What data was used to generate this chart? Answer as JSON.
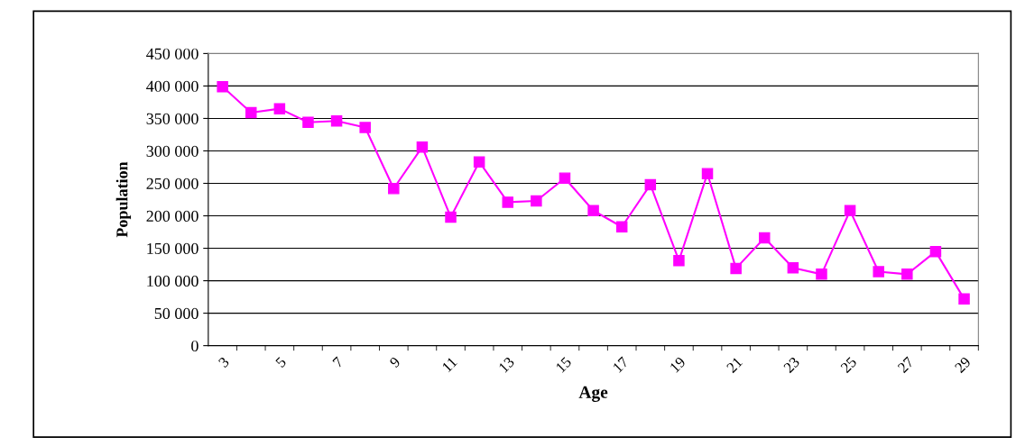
{
  "chart_data": {
    "type": "line",
    "xlabel": "Age",
    "ylabel": "Population",
    "categories": [
      "3",
      null,
      "5",
      null,
      "7",
      null,
      "9",
      null,
      "11",
      null,
      "13",
      null,
      "15",
      null,
      "17",
      null,
      "19",
      null,
      "21",
      null,
      "23",
      null,
      "25",
      null,
      "27",
      null,
      "29"
    ],
    "series": [
      {
        "color": "#ff00ff",
        "values": [
          399000,
          359000,
          365000,
          344000,
          346000,
          336000,
          242000,
          306000,
          198000,
          283000,
          221000,
          223000,
          258000,
          208000,
          183000,
          248000,
          131000,
          265000,
          119000,
          166000,
          120000,
          110000,
          208000,
          114000,
          110000,
          145000,
          72000
        ]
      }
    ],
    "ylim": [
      0,
      450000
    ],
    "yticks": [
      {
        "value": 0,
        "label": "0"
      },
      {
        "value": 50000,
        "label": "50 000"
      },
      {
        "value": 100000,
        "label": "100 000"
      },
      {
        "value": 150000,
        "label": "150 000"
      },
      {
        "value": 200000,
        "label": "200 000"
      },
      {
        "value": 250000,
        "label": "250 000"
      },
      {
        "value": 300000,
        "label": "300 000"
      },
      {
        "value": 350000,
        "label": "350 000"
      },
      {
        "value": 400000,
        "label": "400 000"
      },
      {
        "value": 450000,
        "label": "450 000"
      }
    ],
    "grid": "y",
    "marker": "square",
    "line_style": "solid"
  }
}
